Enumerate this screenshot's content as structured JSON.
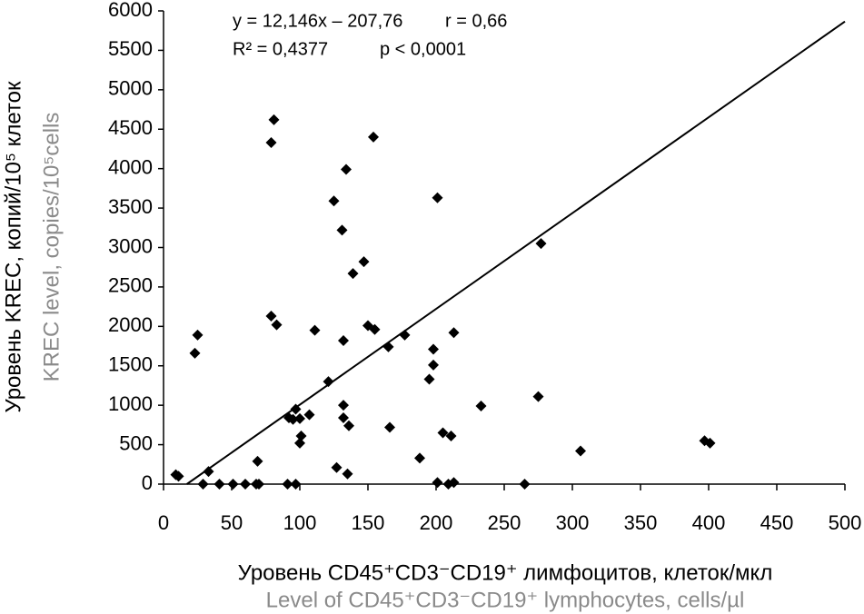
{
  "chart_data": {
    "type": "scatter",
    "y_label": "Уровень KREC, копий/10⁵ клеток",
    "y_label_en": "KREC level, copies/10⁵cells",
    "x_label": "Уровень CD45⁺CD3⁻CD19⁺ лимфоцитов, клеток/мкл",
    "x_label_en": "Level of CD45⁺CD3⁻CD19⁺ lymphocytes, cells/µl",
    "annotations": [
      "y = 12,146x – 207,76",
      "r = 0,66",
      "R² = 0,4377",
      "p < 0,0001"
    ],
    "trendline": {
      "slope": 12.146,
      "intercept": -207.76,
      "color": "#000000"
    },
    "xlim": [
      0,
      500
    ],
    "xticks": [
      0,
      50,
      100,
      150,
      200,
      250,
      300,
      350,
      400,
      450,
      500
    ],
    "ylim": [
      0,
      6000
    ],
    "yticks": [
      0,
      500,
      1000,
      1500,
      2000,
      2500,
      3000,
      3500,
      4000,
      4500,
      5000,
      5500,
      6000
    ],
    "grid": false,
    "series": [
      {
        "color": "#000000",
        "x": [
          9,
          11,
          33,
          29,
          23,
          25,
          41,
          51,
          60,
          68,
          70,
          69,
          81,
          79,
          79,
          83,
          91,
          97,
          92,
          97,
          95,
          100,
          100,
          101,
          107,
          111,
          121,
          125,
          127,
          131,
          132,
          132,
          132,
          135,
          136,
          134,
          139,
          147,
          150,
          154,
          155,
          165,
          166,
          177,
          188,
          195,
          198,
          198,
          201,
          201,
          205,
          209,
          211,
          213,
          213,
          233,
          265,
          275,
          277,
          306,
          397,
          401
        ],
        "values": [
          120,
          100,
          160,
          0,
          1660,
          1890,
          0,
          0,
          0,
          0,
          0,
          290,
          4620,
          4330,
          2130,
          2020,
          0,
          0,
          840,
          950,
          820,
          830,
          520,
          610,
          880,
          1950,
          1300,
          3590,
          210,
          3220,
          1820,
          1000,
          840,
          130,
          740,
          3990,
          2670,
          2820,
          2010,
          4400,
          1960,
          1740,
          720,
          1890,
          330,
          1330,
          1510,
          1710,
          3630,
          20,
          650,
          0,
          610,
          20,
          1920,
          990,
          0,
          1110,
          3050,
          420,
          550,
          520
        ]
      }
    ]
  }
}
